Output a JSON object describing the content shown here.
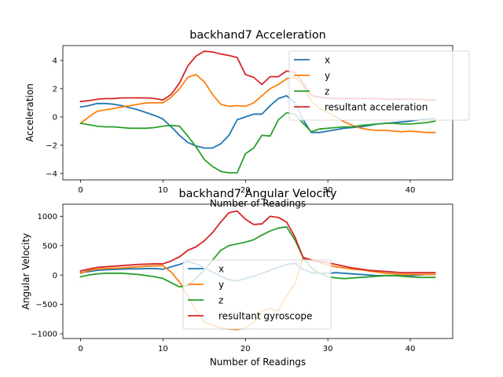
{
  "chart_data": [
    {
      "type": "line",
      "title": "backhand7 Acceleration",
      "xlabel": "Number of Readings",
      "ylabel": "Acceleration",
      "xlim": [
        -2.15,
        45.15
      ],
      "ylim": [
        -4.45,
        5.05
      ],
      "xticks": [
        0,
        10,
        20,
        30,
        40
      ],
      "yticks": [
        -4,
        -2,
        0,
        2,
        4
      ],
      "ytick_labels": [
        "−4",
        "−2",
        "0",
        "2",
        "4"
      ],
      "grid": false,
      "legend_position": "upper-right",
      "x": [
        0,
        1,
        2,
        3,
        4,
        5,
        6,
        7,
        8,
        9,
        10,
        11,
        12,
        13,
        14,
        15,
        16,
        17,
        18,
        19,
        20,
        21,
        22,
        23,
        24,
        25,
        26,
        27,
        28,
        29,
        30,
        31,
        32,
        33,
        34,
        35,
        36,
        37,
        38,
        39,
        40,
        41,
        42,
        43
      ],
      "series": [
        {
          "name": "x",
          "color": "#1f77b4",
          "values": [
            0.7,
            0.8,
            0.95,
            0.95,
            0.9,
            0.8,
            0.65,
            0.5,
            0.3,
            0.1,
            -0.15,
            -0.7,
            -1.3,
            -1.8,
            -2.05,
            -2.2,
            -2.2,
            -1.9,
            -1.3,
            -0.2,
            0.0,
            0.2,
            0.2,
            0.8,
            1.3,
            1.5,
            1.0,
            -0.2,
            -1.1,
            -1.1,
            -1.0,
            -0.9,
            -0.8,
            -0.75,
            -0.7,
            -0.6,
            -0.5,
            -0.45,
            -0.4,
            -0.35,
            -0.3,
            -0.2,
            -0.15,
            -0.1
          ]
        },
        {
          "name": "y",
          "color": "#ff7f0e",
          "values": [
            -0.45,
            0.0,
            0.4,
            0.5,
            0.6,
            0.7,
            0.8,
            0.9,
            1.0,
            1.0,
            1.0,
            1.4,
            2.0,
            2.8,
            3.0,
            2.5,
            1.6,
            0.9,
            0.75,
            0.8,
            0.75,
            1.0,
            1.5,
            2.0,
            2.3,
            2.7,
            2.8,
            2.2,
            1.1,
            0.6,
            0.3,
            0.0,
            -0.35,
            -0.6,
            -0.8,
            -0.9,
            -0.95,
            -0.95,
            -1.0,
            -1.05,
            -1.0,
            -1.05,
            -1.1,
            -1.1
          ]
        },
        {
          "name": "z",
          "color": "#2ca02c",
          "values": [
            -0.45,
            -0.55,
            -0.65,
            -0.7,
            -0.7,
            -0.75,
            -0.8,
            -0.8,
            -0.8,
            -0.75,
            -0.65,
            -0.6,
            -0.65,
            -1.35,
            -2.1,
            -3.0,
            -3.5,
            -3.85,
            -3.95,
            -3.95,
            -2.6,
            -2.2,
            -1.3,
            -1.35,
            -0.2,
            0.3,
            0.2,
            -0.45,
            -1.05,
            -0.85,
            -0.8,
            -0.75,
            -0.7,
            -0.7,
            -0.6,
            -0.55,
            -0.5,
            -0.45,
            -0.45,
            -0.5,
            -0.5,
            -0.45,
            -0.4,
            -0.3
          ]
        },
        {
          "name": "resultant acceleration",
          "color": "#d62728",
          "values": [
            1.1,
            1.15,
            1.25,
            1.3,
            1.3,
            1.35,
            1.35,
            1.35,
            1.35,
            1.3,
            1.2,
            1.6,
            2.4,
            3.6,
            4.3,
            4.65,
            4.6,
            4.45,
            4.35,
            4.2,
            3.0,
            2.8,
            2.3,
            2.85,
            2.85,
            3.25,
            3.15,
            2.4,
            1.5,
            1.4,
            1.35,
            1.3,
            1.3,
            1.3,
            1.3,
            1.3,
            1.3,
            1.25,
            1.25,
            1.25,
            1.25,
            1.25,
            1.2,
            1.2
          ]
        }
      ]
    },
    {
      "type": "line",
      "title": "backhand7 Angular Velocity",
      "xlabel": "Number of Readings",
      "ylabel": "Angular Velocity",
      "xlim": [
        -2.15,
        45.15
      ],
      "ylim": [
        -1080,
        1205
      ],
      "xticks": [
        0,
        10,
        20,
        30,
        40
      ],
      "yticks": [
        -1000,
        -500,
        0,
        500,
        1000
      ],
      "ytick_labels": [
        "−1000",
        "−500",
        "0",
        "500",
        "1000"
      ],
      "grid": false,
      "legend_position": "lower-center",
      "x": [
        0,
        1,
        2,
        3,
        4,
        5,
        6,
        7,
        8,
        9,
        10,
        11,
        12,
        13,
        14,
        15,
        16,
        17,
        18,
        19,
        20,
        21,
        22,
        23,
        24,
        25,
        26,
        27,
        28,
        29,
        30,
        31,
        32,
        33,
        34,
        35,
        36,
        37,
        38,
        39,
        40,
        41,
        42,
        43
      ],
      "series": [
        {
          "name": "x",
          "color": "#1f77b4",
          "values": [
            40,
            60,
            80,
            90,
            95,
            100,
            105,
            105,
            110,
            110,
            100,
            140,
            180,
            230,
            190,
            120,
            50,
            -20,
            -80,
            -100,
            -60,
            -20,
            30,
            80,
            130,
            180,
            200,
            100,
            40,
            30,
            30,
            40,
            30,
            20,
            10,
            0,
            -10,
            -10,
            -10,
            -10,
            -10,
            0,
            10,
            10
          ]
        },
        {
          "name": "y",
          "color": "#ff7f0e",
          "values": [
            30,
            80,
            100,
            110,
            115,
            120,
            130,
            140,
            150,
            155,
            160,
            50,
            -120,
            -350,
            -600,
            -800,
            -850,
            -900,
            -920,
            -930,
            -900,
            -800,
            -620,
            -570,
            -610,
            -350,
            -150,
            300,
            260,
            210,
            170,
            140,
            120,
            100,
            90,
            70,
            50,
            30,
            20,
            10,
            10,
            10,
            10,
            10
          ]
        },
        {
          "name": "z",
          "color": "#2ca02c",
          "values": [
            -30,
            0,
            20,
            30,
            30,
            30,
            20,
            10,
            -10,
            -30,
            -60,
            -130,
            -200,
            -180,
            -60,
            80,
            250,
            420,
            500,
            530,
            560,
            600,
            680,
            750,
            800,
            820,
            600,
            300,
            120,
            30,
            -30,
            -50,
            -60,
            -50,
            -40,
            -30,
            -20,
            -10,
            -10,
            -20,
            -30,
            -40,
            -40,
            -40
          ]
        },
        {
          "name": "resultant gyroscope",
          "color": "#d62728",
          "values": [
            70,
            100,
            130,
            140,
            150,
            160,
            170,
            180,
            185,
            190,
            190,
            240,
            310,
            420,
            480,
            580,
            720,
            900,
            1060,
            1090,
            950,
            860,
            870,
            1000,
            980,
            900,
            650,
            300,
            250,
            230,
            210,
            180,
            150,
            120,
            100,
            80,
            70,
            60,
            50,
            40,
            40,
            40,
            40,
            40
          ]
        }
      ]
    }
  ]
}
